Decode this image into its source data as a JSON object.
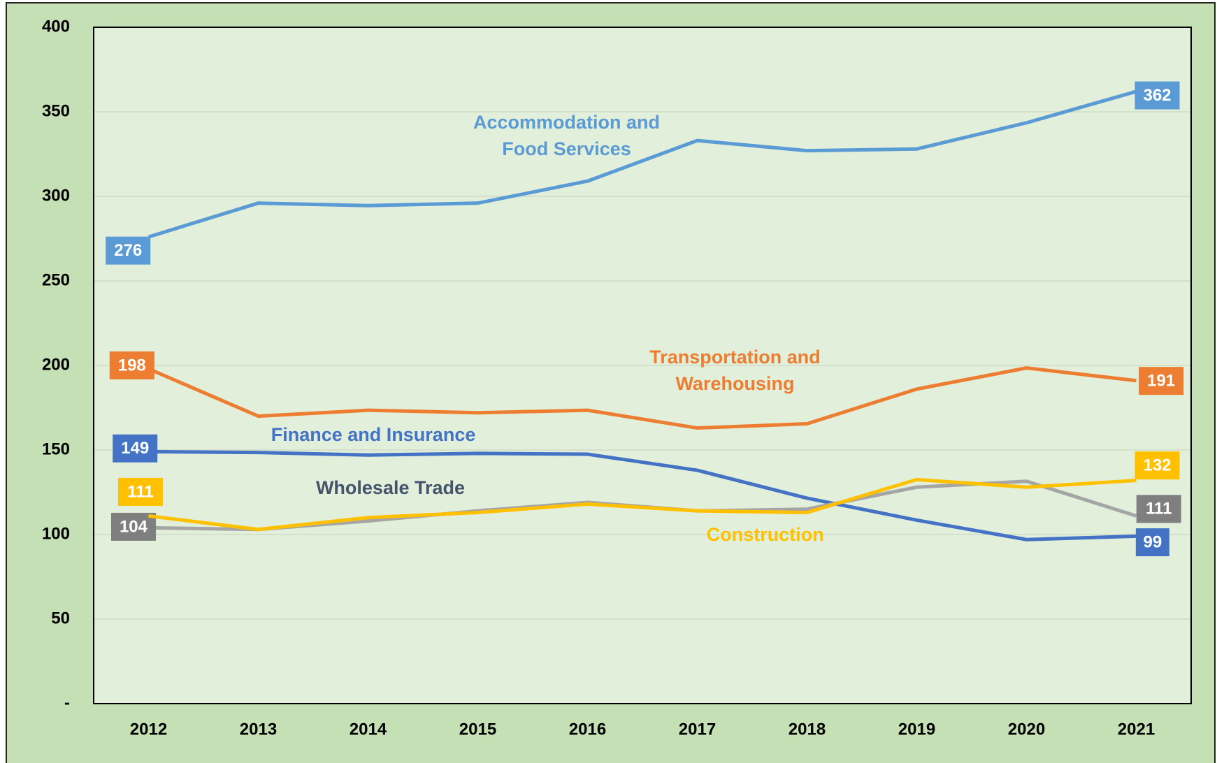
{
  "chart_data": {
    "type": "line",
    "categories": [
      "2012",
      "2013",
      "2014",
      "2015",
      "2016",
      "2017",
      "2018",
      "2019",
      "2020",
      "2021"
    ],
    "series": [
      {
        "name": "Accommodation and Food Services",
        "color": "#5b9bd5",
        "label_color": "#5b9bd5",
        "values": [
          276,
          296,
          294.5,
          296,
          309,
          333,
          327,
          328,
          343.5,
          362
        ]
      },
      {
        "name": "Transportation and Warehousing",
        "color": "#ed7d31",
        "label_color": "#ed7d31",
        "values": [
          198,
          170,
          173.5,
          172,
          173.5,
          163,
          165.5,
          186,
          198.5,
          191
        ]
      },
      {
        "name": "Finance and Insurance",
        "color": "#4472c4",
        "label_color": "#4472c4",
        "values": [
          149,
          148.5,
          147,
          148,
          147.5,
          138,
          121.5,
          108.5,
          97,
          99
        ]
      },
      {
        "name": "Wholesale Trade",
        "color": "#a5a5a5",
        "label_color": "#44546a",
        "box_color": "#7f7f7f",
        "values": [
          104,
          103,
          108,
          114,
          119,
          114,
          115,
          128,
          131.5,
          111
        ]
      },
      {
        "name": "Construction",
        "color": "#ffc000",
        "label_color": "#ffc000",
        "values": [
          111,
          103,
          110,
          113,
          118,
          114,
          113,
          132.5,
          128,
          132
        ]
      }
    ],
    "ylim": [
      0,
      400
    ],
    "yticks": [
      {
        "value": 0,
        "label": "-"
      },
      50,
      100,
      150,
      200,
      250,
      300,
      350,
      400
    ],
    "grid": true
  }
}
